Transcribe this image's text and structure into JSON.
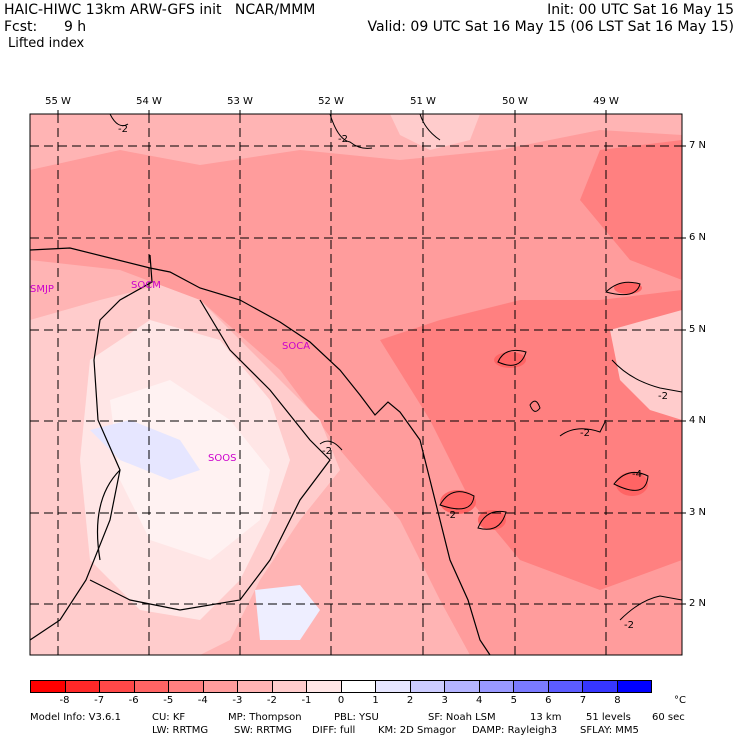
{
  "header": {
    "line1_left": "HAIC-HIWC 13km ARW-GFS init   NCAR/MMM",
    "line2_left": "Fcst:      9 h",
    "line3_left": "Lifted index",
    "line1_right": "Init: 00 UTC Sat 16 May 15",
    "line2_right": "Valid: 09 UTC Sat 16 May 15 (06 LST Sat 16 May 15)"
  },
  "map": {
    "lon_labels": [
      "55 W",
      "54 W",
      "53 W",
      "52 W",
      "51 W",
      "50 W",
      "49 W"
    ],
    "lat_labels": [
      "7 N",
      "6 N",
      "5 N",
      "4 N",
      "3 N",
      "2 N"
    ],
    "stations": [
      "SMJP",
      "SOCM",
      "SOCA",
      "SOOS"
    ],
    "contour_labels": [
      "-2",
      "-2",
      "-2",
      "-2",
      "-2",
      "-4",
      "-2",
      "-2"
    ]
  },
  "colorbar": {
    "colors": [
      "#ff0000",
      "#ff2828",
      "#ff4848",
      "#ff6464",
      "#ff8080",
      "#ff9c9c",
      "#ffb4b4",
      "#ffcccc",
      "#ffe6e6",
      "#ffffff",
      "#e6e6ff",
      "#ccccff",
      "#b4b4ff",
      "#9999ff",
      "#7a7aff",
      "#5c5cff",
      "#3636ff",
      "#0000ff"
    ],
    "ticks": [
      "-8",
      "-7",
      "-6",
      "-5",
      "-4",
      "-3",
      "-2",
      "-1",
      "0",
      "1",
      "2",
      "3",
      "4",
      "5",
      "6",
      "7",
      "8"
    ],
    "unit": "°C"
  },
  "footer": {
    "row1": [
      "Model Info: V3.6.1",
      "CU: KF",
      "MP: Thompson",
      "PBL: YSU",
      "SF: Noah LSM",
      "13 km",
      "51 levels",
      "60 sec"
    ],
    "row2": [
      "LW: RRTMG",
      "SW: RRTMG",
      "DIFF: full",
      "KM: 2D Smagor",
      "DAMP: Rayleigh3",
      "SFLAY: MM5"
    ]
  }
}
